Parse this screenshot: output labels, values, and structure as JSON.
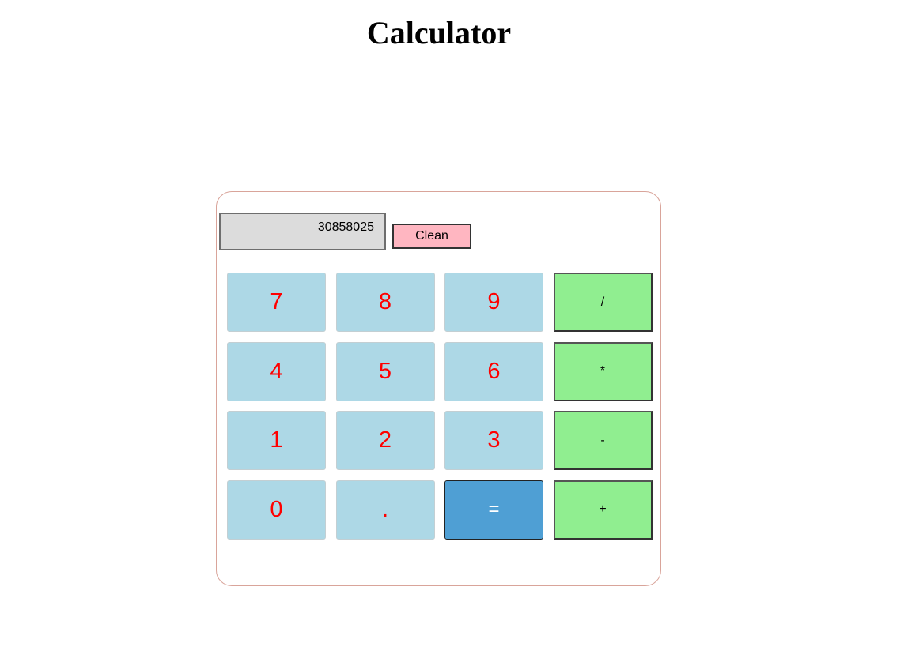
{
  "page": {
    "title": "Calculator"
  },
  "calculator": {
    "display_value": "30858025",
    "clean_label": "Clean",
    "keys": [
      {
        "label": "7",
        "kind": "number"
      },
      {
        "label": "8",
        "kind": "number"
      },
      {
        "label": "9",
        "kind": "number"
      },
      {
        "label": "/",
        "kind": "operator"
      },
      {
        "label": "4",
        "kind": "number"
      },
      {
        "label": "5",
        "kind": "number"
      },
      {
        "label": "6",
        "kind": "number"
      },
      {
        "label": "*",
        "kind": "operator"
      },
      {
        "label": "1",
        "kind": "number"
      },
      {
        "label": "2",
        "kind": "number"
      },
      {
        "label": "3",
        "kind": "number"
      },
      {
        "label": "-",
        "kind": "operator"
      },
      {
        "label": "0",
        "kind": "number"
      },
      {
        "label": ".",
        "kind": "number"
      },
      {
        "label": "=",
        "kind": "equals"
      },
      {
        "label": "+",
        "kind": "operator"
      }
    ]
  },
  "colors": {
    "number_key_bg": "#add8e6",
    "number_key_text": "#ff0000",
    "operator_key_bg": "#90ee90",
    "equals_key_bg": "#4f9fd4",
    "clean_button_bg": "#ffb6c1",
    "display_bg": "#dcdcdc",
    "panel_border": "#d9a49a"
  }
}
